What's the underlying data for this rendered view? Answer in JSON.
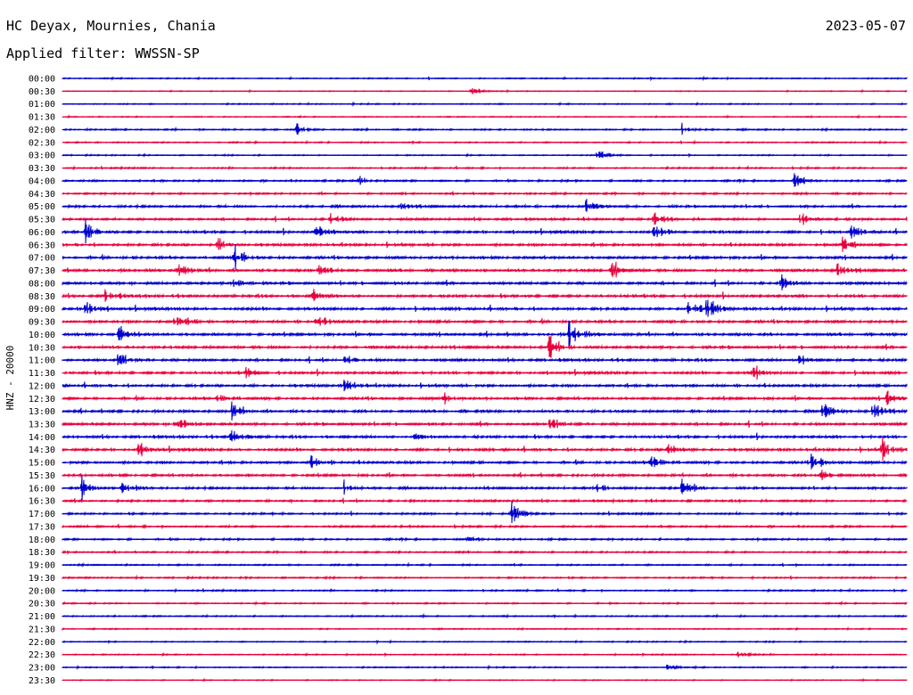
{
  "header": {
    "station": "HC Deyax, Mournies, Chania",
    "date": "2023-05-07",
    "filter": "Applied filter: WWSSN-SP"
  },
  "chart_data": {
    "type": "line",
    "ylabel": "HNZ - 20000",
    "series_colors": [
      "#0000cc",
      "#e8003d"
    ],
    "row_labels": [
      "00:00",
      "00:30",
      "01:00",
      "01:30",
      "02:00",
      "02:30",
      "03:00",
      "03:30",
      "04:00",
      "04:30",
      "05:00",
      "05:30",
      "06:00",
      "06:30",
      "07:00",
      "07:30",
      "08:00",
      "08:30",
      "09:00",
      "09:30",
      "10:00",
      "10:30",
      "11:00",
      "11:30",
      "12:00",
      "12:30",
      "13:00",
      "13:30",
      "14:00",
      "14:30",
      "15:00",
      "15:30",
      "16:00",
      "16:30",
      "17:00",
      "17:30",
      "18:00",
      "18:30",
      "19:00",
      "19:30",
      "20:00",
      "20:30",
      "21:00",
      "21:30",
      "22:00",
      "22:30",
      "23:00",
      "23:30"
    ],
    "noise_levels": [
      0.6,
      0.4,
      0.6,
      0.5,
      0.8,
      0.7,
      0.6,
      0.8,
      1.0,
      1.0,
      1.3,
      1.3,
      1.5,
      1.5,
      1.6,
      1.6,
      1.6,
      1.6,
      1.6,
      1.6,
      1.6,
      1.6,
      1.5,
      1.5,
      1.5,
      1.5,
      1.5,
      1.5,
      1.5,
      1.5,
      1.5,
      1.4,
      1.3,
      1.2,
      1.0,
      1.0,
      1.0,
      0.9,
      0.8,
      0.8,
      0.8,
      0.7,
      0.7,
      0.6,
      0.6,
      0.6,
      0.6,
      0.5
    ],
    "events": [
      {
        "row": 1,
        "minute": 14.5,
        "amp": 5
      },
      {
        "row": 4,
        "minute": 8.3,
        "amp": 6
      },
      {
        "row": 4,
        "minute": 22.0,
        "amp": 5
      },
      {
        "row": 6,
        "minute": 19.0,
        "amp": 6
      },
      {
        "row": 8,
        "minute": 10.5,
        "amp": 5
      },
      {
        "row": 8,
        "minute": 26.0,
        "amp": 9
      },
      {
        "row": 10,
        "minute": 18.6,
        "amp": 10
      },
      {
        "row": 10,
        "minute": 12.0,
        "amp": 5
      },
      {
        "row": 11,
        "minute": 9.5,
        "amp": 8
      },
      {
        "row": 11,
        "minute": 21.0,
        "amp": 7
      },
      {
        "row": 11,
        "minute": 26.2,
        "amp": 9
      },
      {
        "row": 12,
        "minute": 0.8,
        "amp": 12
      },
      {
        "row": 12,
        "minute": 9.0,
        "amp": 10
      },
      {
        "row": 12,
        "minute": 21.0,
        "amp": 7
      },
      {
        "row": 12,
        "minute": 28.0,
        "amp": 8
      },
      {
        "row": 13,
        "minute": 5.5,
        "amp": 7
      },
      {
        "row": 13,
        "minute": 27.7,
        "amp": 9
      },
      {
        "row": 14,
        "minute": 6.1,
        "amp": 12
      },
      {
        "row": 15,
        "minute": 4.1,
        "amp": 9
      },
      {
        "row": 15,
        "minute": 9.0,
        "amp": 8
      },
      {
        "row": 15,
        "minute": 19.5,
        "amp": 11
      },
      {
        "row": 15,
        "minute": 27.5,
        "amp": 9
      },
      {
        "row": 16,
        "minute": 6.1,
        "amp": 9
      },
      {
        "row": 16,
        "minute": 25.5,
        "amp": 9
      },
      {
        "row": 17,
        "minute": 1.5,
        "amp": 7
      },
      {
        "row": 17,
        "minute": 8.9,
        "amp": 7
      },
      {
        "row": 18,
        "minute": 0.8,
        "amp": 14
      },
      {
        "row": 18,
        "minute": 22.2,
        "amp": 11
      },
      {
        "row": 18,
        "minute": 22.9,
        "amp": 11
      },
      {
        "row": 19,
        "minute": 4.0,
        "amp": 9
      },
      {
        "row": 19,
        "minute": 9.0,
        "amp": 7
      },
      {
        "row": 20,
        "minute": 2.0,
        "amp": 8
      },
      {
        "row": 20,
        "minute": 18.0,
        "amp": 13
      },
      {
        "row": 21,
        "minute": 17.3,
        "amp": 12
      },
      {
        "row": 22,
        "minute": 2.0,
        "amp": 10
      },
      {
        "row": 22,
        "minute": 10.0,
        "amp": 6
      },
      {
        "row": 22,
        "minute": 26.2,
        "amp": 11
      },
      {
        "row": 23,
        "minute": 6.5,
        "amp": 8
      },
      {
        "row": 23,
        "minute": 24.5,
        "amp": 8
      },
      {
        "row": 24,
        "minute": 10.0,
        "amp": 7
      },
      {
        "row": 25,
        "minute": 5.5,
        "amp": 6
      },
      {
        "row": 25,
        "minute": 13.5,
        "amp": 6
      },
      {
        "row": 25,
        "minute": 29.3,
        "amp": 9
      },
      {
        "row": 26,
        "minute": 6.0,
        "amp": 8
      },
      {
        "row": 26,
        "minute": 27.0,
        "amp": 9
      },
      {
        "row": 26,
        "minute": 28.8,
        "amp": 12
      },
      {
        "row": 27,
        "minute": 4.0,
        "amp": 10
      },
      {
        "row": 27,
        "minute": 17.3,
        "amp": 8
      },
      {
        "row": 28,
        "minute": 6.0,
        "amp": 10
      },
      {
        "row": 28,
        "minute": 12.5,
        "amp": 8
      },
      {
        "row": 29,
        "minute": 2.7,
        "amp": 8
      },
      {
        "row": 29,
        "minute": 21.5,
        "amp": 10
      },
      {
        "row": 29,
        "minute": 29.1,
        "amp": 12
      },
      {
        "row": 30,
        "minute": 8.8,
        "amp": 7
      },
      {
        "row": 30,
        "minute": 20.9,
        "amp": 12
      },
      {
        "row": 30,
        "minute": 26.6,
        "amp": 9
      },
      {
        "row": 31,
        "minute": 26.9,
        "amp": 8
      },
      {
        "row": 32,
        "minute": 0.7,
        "amp": 9
      },
      {
        "row": 32,
        "minute": 2.1,
        "amp": 10
      },
      {
        "row": 32,
        "minute": 10.0,
        "amp": 6
      },
      {
        "row": 32,
        "minute": 19.0,
        "amp": 6
      },
      {
        "row": 32,
        "minute": 22.0,
        "amp": 12
      },
      {
        "row": 34,
        "minute": 15.9,
        "amp": 18
      },
      {
        "row": 36,
        "minute": 14.4,
        "amp": 4
      },
      {
        "row": 45,
        "minute": 24.0,
        "amp": 4
      },
      {
        "row": 46,
        "minute": 21.5,
        "amp": 4
      }
    ]
  }
}
